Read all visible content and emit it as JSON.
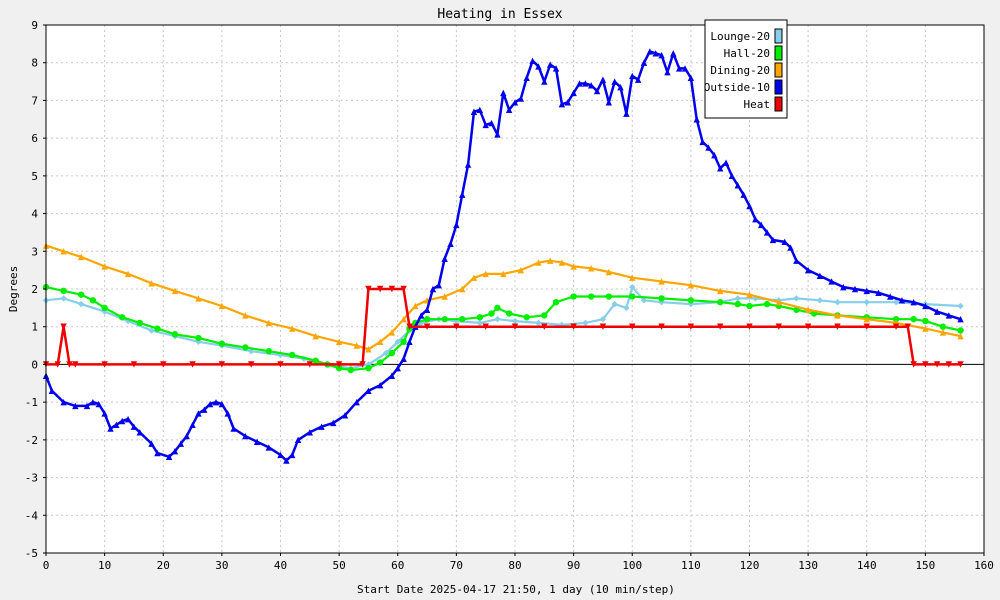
{
  "chart_data": {
    "type": "line",
    "title": "Heating in Essex",
    "xlabel": "Start Date 2025-04-17 21:50, 1 day (10 min/step)",
    "ylabel": "Degrees",
    "xlim": [
      0,
      160
    ],
    "ylim": [
      -5,
      9
    ],
    "xticks": [
      0,
      10,
      20,
      30,
      40,
      50,
      60,
      70,
      80,
      90,
      100,
      110,
      120,
      130,
      140,
      150,
      160
    ],
    "yticks": [
      -5,
      -4,
      -3,
      -2,
      -1,
      0,
      1,
      2,
      3,
      4,
      5,
      6,
      7,
      8,
      9
    ],
    "grid": true,
    "legend_position": "top-right",
    "series": [
      {
        "name": "Lounge-20",
        "color": "#87ceeb",
        "marker": "diamond",
        "points": [
          [
            0,
            1.7
          ],
          [
            3,
            1.75
          ],
          [
            6,
            1.6
          ],
          [
            10,
            1.4
          ],
          [
            14,
            1.15
          ],
          [
            18,
            0.9
          ],
          [
            22,
            0.75
          ],
          [
            26,
            0.6
          ],
          [
            30,
            0.5
          ],
          [
            35,
            0.35
          ],
          [
            40,
            0.25
          ],
          [
            44,
            0.15
          ],
          [
            48,
            0.0
          ],
          [
            52,
            -0.1
          ],
          [
            55,
            0.0
          ],
          [
            58,
            0.3
          ],
          [
            60,
            0.6
          ],
          [
            62,
            0.9
          ],
          [
            64,
            1.1
          ],
          [
            67,
            1.2
          ],
          [
            70,
            1.15
          ],
          [
            74,
            1.1
          ],
          [
            77,
            1.2
          ],
          [
            80,
            1.15
          ],
          [
            84,
            1.1
          ],
          [
            88,
            1.05
          ],
          [
            92,
            1.1
          ],
          [
            95,
            1.2
          ],
          [
            97,
            1.6
          ],
          [
            99,
            1.5
          ],
          [
            100,
            2.05
          ],
          [
            102,
            1.7
          ],
          [
            105,
            1.65
          ],
          [
            110,
            1.6
          ],
          [
            115,
            1.65
          ],
          [
            118,
            1.75
          ],
          [
            121,
            1.75
          ],
          [
            125,
            1.7
          ],
          [
            128,
            1.75
          ],
          [
            132,
            1.7
          ],
          [
            135,
            1.65
          ],
          [
            140,
            1.65
          ],
          [
            145,
            1.65
          ],
          [
            150,
            1.6
          ],
          [
            156,
            1.55
          ]
        ]
      },
      {
        "name": "Hall-20",
        "color": "#00ee00",
        "marker": "circle",
        "points": [
          [
            0,
            2.05
          ],
          [
            3,
            1.95
          ],
          [
            6,
            1.85
          ],
          [
            8,
            1.7
          ],
          [
            10,
            1.5
          ],
          [
            13,
            1.25
          ],
          [
            16,
            1.1
          ],
          [
            19,
            0.95
          ],
          [
            22,
            0.8
          ],
          [
            26,
            0.7
          ],
          [
            30,
            0.55
          ],
          [
            34,
            0.45
          ],
          [
            38,
            0.35
          ],
          [
            42,
            0.25
          ],
          [
            46,
            0.1
          ],
          [
            48,
            0.0
          ],
          [
            50,
            -0.1
          ],
          [
            52,
            -0.15
          ],
          [
            55,
            -0.1
          ],
          [
            57,
            0.05
          ],
          [
            59,
            0.3
          ],
          [
            61,
            0.6
          ],
          [
            62,
            0.95
          ],
          [
            63,
            1.1
          ],
          [
            65,
            1.2
          ],
          [
            68,
            1.2
          ],
          [
            71,
            1.2
          ],
          [
            74,
            1.25
          ],
          [
            76,
            1.35
          ],
          [
            77,
            1.5
          ],
          [
            79,
            1.35
          ],
          [
            82,
            1.25
          ],
          [
            85,
            1.3
          ],
          [
            87,
            1.65
          ],
          [
            90,
            1.8
          ],
          [
            93,
            1.8
          ],
          [
            96,
            1.8
          ],
          [
            100,
            1.8
          ],
          [
            105,
            1.75
          ],
          [
            110,
            1.7
          ],
          [
            115,
            1.65
          ],
          [
            118,
            1.6
          ],
          [
            120,
            1.55
          ],
          [
            123,
            1.6
          ],
          [
            125,
            1.55
          ],
          [
            128,
            1.45
          ],
          [
            131,
            1.35
          ],
          [
            135,
            1.3
          ],
          [
            140,
            1.25
          ],
          [
            145,
            1.2
          ],
          [
            148,
            1.2
          ],
          [
            150,
            1.15
          ],
          [
            153,
            1.0
          ],
          [
            156,
            0.9
          ]
        ]
      },
      {
        "name": "Dining-20",
        "color": "#ffa500",
        "marker": "triangle",
        "points": [
          [
            0,
            3.15
          ],
          [
            3,
            3.0
          ],
          [
            6,
            2.85
          ],
          [
            10,
            2.6
          ],
          [
            14,
            2.4
          ],
          [
            18,
            2.15
          ],
          [
            22,
            1.95
          ],
          [
            26,
            1.75
          ],
          [
            30,
            1.55
          ],
          [
            34,
            1.3
          ],
          [
            38,
            1.1
          ],
          [
            42,
            0.95
          ],
          [
            46,
            0.75
          ],
          [
            50,
            0.6
          ],
          [
            53,
            0.5
          ],
          [
            55,
            0.4
          ],
          [
            57,
            0.6
          ],
          [
            59,
            0.85
          ],
          [
            61,
            1.2
          ],
          [
            63,
            1.55
          ],
          [
            65,
            1.7
          ],
          [
            68,
            1.8
          ],
          [
            71,
            2.0
          ],
          [
            73,
            2.3
          ],
          [
            75,
            2.4
          ],
          [
            78,
            2.4
          ],
          [
            81,
            2.5
          ],
          [
            84,
            2.7
          ],
          [
            86,
            2.75
          ],
          [
            88,
            2.7
          ],
          [
            90,
            2.6
          ],
          [
            93,
            2.55
          ],
          [
            96,
            2.45
          ],
          [
            100,
            2.3
          ],
          [
            105,
            2.2
          ],
          [
            110,
            2.1
          ],
          [
            115,
            1.95
          ],
          [
            120,
            1.85
          ],
          [
            125,
            1.65
          ],
          [
            130,
            1.45
          ],
          [
            135,
            1.3
          ],
          [
            140,
            1.2
          ],
          [
            145,
            1.1
          ],
          [
            150,
            0.95
          ],
          [
            153,
            0.85
          ],
          [
            156,
            0.75
          ]
        ]
      },
      {
        "name": "Outside-10",
        "color": "#0000ee",
        "marker": "triangle-up",
        "points": [
          [
            0,
            -0.3
          ],
          [
            1,
            -0.7
          ],
          [
            3,
            -1.0
          ],
          [
            5,
            -1.1
          ],
          [
            7,
            -1.1
          ],
          [
            8,
            -1.0
          ],
          [
            9,
            -1.05
          ],
          [
            10,
            -1.3
          ],
          [
            11,
            -1.7
          ],
          [
            12,
            -1.6
          ],
          [
            13,
            -1.5
          ],
          [
            14,
            -1.45
          ],
          [
            15,
            -1.65
          ],
          [
            16,
            -1.8
          ],
          [
            18,
            -2.1
          ],
          [
            19,
            -2.35
          ],
          [
            21,
            -2.45
          ],
          [
            22,
            -2.3
          ],
          [
            23,
            -2.1
          ],
          [
            24,
            -1.9
          ],
          [
            25,
            -1.6
          ],
          [
            26,
            -1.3
          ],
          [
            27,
            -1.2
          ],
          [
            28,
            -1.05
          ],
          [
            29,
            -1.0
          ],
          [
            30,
            -1.05
          ],
          [
            31,
            -1.3
          ],
          [
            32,
            -1.7
          ],
          [
            34,
            -1.9
          ],
          [
            36,
            -2.05
          ],
          [
            38,
            -2.2
          ],
          [
            40,
            -2.4
          ],
          [
            41,
            -2.55
          ],
          [
            42,
            -2.4
          ],
          [
            43,
            -2.0
          ],
          [
            45,
            -1.8
          ],
          [
            47,
            -1.65
          ],
          [
            49,
            -1.55
          ],
          [
            51,
            -1.35
          ],
          [
            53,
            -1.0
          ],
          [
            55,
            -0.7
          ],
          [
            57,
            -0.55
          ],
          [
            59,
            -0.3
          ],
          [
            60,
            -0.1
          ],
          [
            61,
            0.15
          ],
          [
            62,
            0.6
          ],
          [
            63,
            1.0
          ],
          [
            64,
            1.3
          ],
          [
            65,
            1.45
          ],
          [
            66,
            2.0
          ],
          [
            67,
            2.1
          ],
          [
            68,
            2.8
          ],
          [
            69,
            3.2
          ],
          [
            70,
            3.7
          ],
          [
            71,
            4.5
          ],
          [
            72,
            5.3
          ],
          [
            73,
            6.7
          ],
          [
            74,
            6.75
          ],
          [
            75,
            6.35
          ],
          [
            76,
            6.4
          ],
          [
            77,
            6.1
          ],
          [
            78,
            7.2
          ],
          [
            79,
            6.75
          ],
          [
            80,
            6.95
          ],
          [
            81,
            7.05
          ],
          [
            82,
            7.6
          ],
          [
            83,
            8.05
          ],
          [
            84,
            7.9
          ],
          [
            85,
            7.5
          ],
          [
            86,
            7.95
          ],
          [
            87,
            7.85
          ],
          [
            88,
            6.9
          ],
          [
            89,
            6.95
          ],
          [
            90,
            7.2
          ],
          [
            91,
            7.45
          ],
          [
            92,
            7.45
          ],
          [
            93,
            7.4
          ],
          [
            94,
            7.25
          ],
          [
            95,
            7.55
          ],
          [
            96,
            6.95
          ],
          [
            97,
            7.5
          ],
          [
            98,
            7.35
          ],
          [
            99,
            6.65
          ],
          [
            100,
            7.65
          ],
          [
            101,
            7.55
          ],
          [
            102,
            8.0
          ],
          [
            103,
            8.3
          ],
          [
            104,
            8.25
          ],
          [
            105,
            8.2
          ],
          [
            106,
            7.75
          ],
          [
            107,
            8.25
          ],
          [
            108,
            7.85
          ],
          [
            109,
            7.85
          ],
          [
            110,
            7.6
          ],
          [
            111,
            6.5
          ],
          [
            112,
            5.9
          ],
          [
            113,
            5.75
          ],
          [
            114,
            5.55
          ],
          [
            115,
            5.2
          ],
          [
            116,
            5.35
          ],
          [
            117,
            5.0
          ],
          [
            118,
            4.75
          ],
          [
            119,
            4.5
          ],
          [
            120,
            4.2
          ],
          [
            121,
            3.85
          ],
          [
            122,
            3.7
          ],
          [
            123,
            3.5
          ],
          [
            124,
            3.3
          ],
          [
            126,
            3.25
          ],
          [
            127,
            3.1
          ],
          [
            128,
            2.75
          ],
          [
            130,
            2.5
          ],
          [
            132,
            2.35
          ],
          [
            134,
            2.2
          ],
          [
            136,
            2.05
          ],
          [
            138,
            2.0
          ],
          [
            140,
            1.95
          ],
          [
            142,
            1.9
          ],
          [
            144,
            1.8
          ],
          [
            146,
            1.7
          ],
          [
            148,
            1.65
          ],
          [
            150,
            1.55
          ],
          [
            152,
            1.4
          ],
          [
            154,
            1.3
          ],
          [
            156,
            1.2
          ]
        ]
      },
      {
        "name": "Heat",
        "color": "#ee0000",
        "marker": "triangle-down",
        "points": [
          [
            0,
            0
          ],
          [
            2,
            0
          ],
          [
            3,
            1
          ],
          [
            4,
            0
          ],
          [
            5,
            0
          ],
          [
            10,
            0
          ],
          [
            15,
            0
          ],
          [
            20,
            0
          ],
          [
            25,
            0
          ],
          [
            30,
            0
          ],
          [
            35,
            0
          ],
          [
            40,
            0
          ],
          [
            45,
            0
          ],
          [
            50,
            0
          ],
          [
            54,
            0
          ],
          [
            55,
            2
          ],
          [
            57,
            2
          ],
          [
            59,
            2
          ],
          [
            61,
            2
          ],
          [
            62,
            1
          ],
          [
            65,
            1
          ],
          [
            70,
            1
          ],
          [
            75,
            1
          ],
          [
            80,
            1
          ],
          [
            85,
            1
          ],
          [
            90,
            1
          ],
          [
            95,
            1
          ],
          [
            100,
            1
          ],
          [
            105,
            1
          ],
          [
            110,
            1
          ],
          [
            115,
            1
          ],
          [
            120,
            1
          ],
          [
            125,
            1
          ],
          [
            130,
            1
          ],
          [
            135,
            1
          ],
          [
            140,
            1
          ],
          [
            145,
            1
          ],
          [
            147,
            1
          ],
          [
            148,
            0
          ],
          [
            150,
            0
          ],
          [
            152,
            0
          ],
          [
            154,
            0
          ],
          [
            156,
            0
          ]
        ]
      }
    ]
  }
}
